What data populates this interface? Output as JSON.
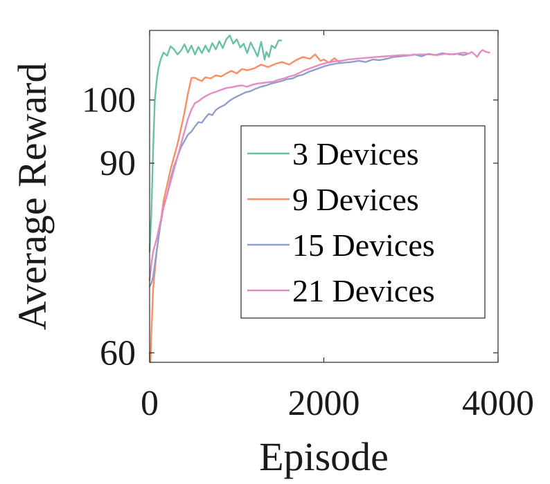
{
  "chart_data": {
    "type": "line",
    "xlabel": "Episode",
    "ylabel": "Average Reward",
    "xlim": [
      0,
      4000
    ],
    "ylim": [
      58.5,
      111
    ],
    "xticks": [
      0,
      2000,
      4000
    ],
    "yticks": [
      60,
      90,
      100
    ],
    "grid": false,
    "legend_position": "lower-right",
    "series": [
      {
        "name": "3 Devices",
        "color": "#66c2a5",
        "points": [
          [
            0,
            76
          ],
          [
            20,
            82
          ],
          [
            40,
            92
          ],
          [
            60,
            100
          ],
          [
            80,
            103
          ],
          [
            100,
            105
          ],
          [
            130,
            106.5
          ],
          [
            160,
            107.5
          ],
          [
            200,
            107
          ],
          [
            240,
            108.5
          ],
          [
            280,
            108
          ],
          [
            320,
            107.2
          ],
          [
            360,
            107.8
          ],
          [
            400,
            108.8
          ],
          [
            440,
            107.5
          ],
          [
            480,
            108.6
          ],
          [
            520,
            107.2
          ],
          [
            560,
            108.4
          ],
          [
            600,
            107.4
          ],
          [
            640,
            108.6
          ],
          [
            680,
            107.6
          ],
          [
            720,
            109
          ],
          [
            760,
            108
          ],
          [
            800,
            109.3
          ],
          [
            840,
            108.2
          ],
          [
            880,
            109.6
          ],
          [
            920,
            110.2
          ],
          [
            960,
            108.9
          ],
          [
            1000,
            109.6
          ],
          [
            1040,
            108.3
          ],
          [
            1080,
            108.9
          ],
          [
            1120,
            107.4
          ],
          [
            1160,
            109.1
          ],
          [
            1200,
            108
          ],
          [
            1240,
            106.9
          ],
          [
            1280,
            109.2
          ],
          [
            1320,
            106.4
          ],
          [
            1340,
            107.6
          ],
          [
            1370,
            106.8
          ],
          [
            1400,
            108.6
          ],
          [
            1440,
            108.2
          ],
          [
            1480,
            109.4
          ],
          [
            1510,
            109.4
          ]
        ]
      },
      {
        "name": "9 Devices",
        "color": "#fc8d62",
        "points": [
          [
            0,
            60
          ],
          [
            10,
            58.5
          ],
          [
            20,
            63
          ],
          [
            40,
            70
          ],
          [
            80,
            76
          ],
          [
            120,
            80
          ],
          [
            160,
            84
          ],
          [
            200,
            86.5
          ],
          [
            240,
            89
          ],
          [
            280,
            91
          ],
          [
            320,
            93
          ],
          [
            360,
            95.5
          ],
          [
            400,
            98
          ],
          [
            440,
            101
          ],
          [
            480,
            103.5
          ],
          [
            520,
            103.5
          ],
          [
            560,
            103.2
          ],
          [
            600,
            103
          ],
          [
            640,
            103.6
          ],
          [
            700,
            103.4
          ],
          [
            760,
            103.9
          ],
          [
            820,
            103.7
          ],
          [
            880,
            104.2
          ],
          [
            940,
            104.6
          ],
          [
            1000,
            104.2
          ],
          [
            1060,
            104.9
          ],
          [
            1120,
            104.7
          ],
          [
            1200,
            105
          ],
          [
            1280,
            105.6
          ],
          [
            1360,
            105.2
          ],
          [
            1440,
            105.7
          ],
          [
            1520,
            106
          ],
          [
            1600,
            105.6
          ],
          [
            1680,
            106.3
          ],
          [
            1760,
            106.8
          ],
          [
            1840,
            106.5
          ],
          [
            1900,
            107.2
          ],
          [
            1960,
            106.2
          ],
          [
            2000,
            106.4
          ],
          [
            2060,
            105.9
          ],
          [
            2120,
            106.6
          ],
          [
            2180,
            106
          ]
        ]
      },
      {
        "name": "15 Devices",
        "color": "#8da0cb",
        "points": [
          [
            0,
            70.5
          ],
          [
            20,
            71
          ],
          [
            40,
            72
          ],
          [
            80,
            76
          ],
          [
            120,
            80
          ],
          [
            160,
            83
          ],
          [
            200,
            85
          ],
          [
            240,
            87.5
          ],
          [
            280,
            89.5
          ],
          [
            320,
            91
          ],
          [
            360,
            92.5
          ],
          [
            400,
            93.5
          ],
          [
            440,
            94.5
          ],
          [
            480,
            95
          ],
          [
            520,
            95.8
          ],
          [
            560,
            96.5
          ],
          [
            600,
            96.4
          ],
          [
            640,
            97.2
          ],
          [
            680,
            97.8
          ],
          [
            720,
            97.6
          ],
          [
            760,
            98.4
          ],
          [
            800,
            98.8
          ],
          [
            860,
            99.2
          ],
          [
            920,
            99.9
          ],
          [
            980,
            100.4
          ],
          [
            1040,
            100.8
          ],
          [
            1100,
            101.2
          ],
          [
            1160,
            101.4
          ],
          [
            1220,
            101.8
          ],
          [
            1280,
            102.1
          ],
          [
            1340,
            102.3
          ],
          [
            1400,
            102.6
          ],
          [
            1460,
            102.8
          ],
          [
            1520,
            103
          ],
          [
            1580,
            103.3
          ],
          [
            1640,
            103.4
          ],
          [
            1700,
            103.8
          ],
          [
            1760,
            104
          ],
          [
            1820,
            104.4
          ],
          [
            1880,
            104.7
          ],
          [
            1940,
            105
          ],
          [
            2000,
            105.3
          ],
          [
            2080,
            105.6
          ],
          [
            2160,
            105.8
          ],
          [
            2240,
            105.9
          ],
          [
            2320,
            106
          ],
          [
            2400,
            106.2
          ],
          [
            2480,
            106
          ],
          [
            2560,
            106.4
          ],
          [
            2640,
            106.3
          ],
          [
            2720,
            106.5
          ],
          [
            2800,
            106.8
          ],
          [
            2880,
            106.9
          ],
          [
            2960,
            107
          ],
          [
            3040,
            107.2
          ],
          [
            3120,
            106.9
          ],
          [
            3200,
            107.3
          ],
          [
            3280,
            107.1
          ],
          [
            3360,
            107.4
          ],
          [
            3440,
            107.2
          ],
          [
            3520,
            107.3
          ],
          [
            3600,
            107.1
          ],
          [
            3640,
            107.2
          ]
        ]
      },
      {
        "name": "21 Devices",
        "color": "#e78ac3",
        "points": [
          [
            0,
            71.5
          ],
          [
            20,
            74
          ],
          [
            40,
            76
          ],
          [
            80,
            78
          ],
          [
            120,
            80.5
          ],
          [
            160,
            83
          ],
          [
            200,
            85
          ],
          [
            240,
            87
          ],
          [
            280,
            89
          ],
          [
            320,
            91
          ],
          [
            360,
            93
          ],
          [
            400,
            95
          ],
          [
            440,
            97
          ],
          [
            480,
            98.5
          ],
          [
            520,
            99.5
          ],
          [
            560,
            99.8
          ],
          [
            600,
            100.2
          ],
          [
            640,
            100.6
          ],
          [
            700,
            101
          ],
          [
            760,
            101.3
          ],
          [
            820,
            101.6
          ],
          [
            880,
            101.9
          ],
          [
            940,
            102
          ],
          [
            1000,
            102.2
          ],
          [
            1060,
            102.3
          ],
          [
            1120,
            102.1
          ],
          [
            1180,
            102.4
          ],
          [
            1240,
            102.6
          ],
          [
            1300,
            102.7
          ],
          [
            1360,
            102.8
          ],
          [
            1420,
            102.9
          ],
          [
            1480,
            103.2
          ],
          [
            1540,
            103.4
          ],
          [
            1600,
            103.7
          ],
          [
            1660,
            103.9
          ],
          [
            1720,
            104.3
          ],
          [
            1780,
            104.7
          ],
          [
            1840,
            105
          ],
          [
            1900,
            105.3
          ],
          [
            1960,
            105.6
          ],
          [
            2040,
            105.9
          ],
          [
            2120,
            106.1
          ],
          [
            2200,
            106.2
          ],
          [
            2280,
            106.4
          ],
          [
            2360,
            106.5
          ],
          [
            2440,
            106.6
          ],
          [
            2520,
            106.7
          ],
          [
            2600,
            106.8
          ],
          [
            2700,
            106.9
          ],
          [
            2800,
            107
          ],
          [
            2900,
            107.1
          ],
          [
            3000,
            107.1
          ],
          [
            3100,
            107.2
          ],
          [
            3200,
            107.2
          ],
          [
            3300,
            107.1
          ],
          [
            3400,
            107.3
          ],
          [
            3500,
            107.2
          ],
          [
            3560,
            107.4
          ],
          [
            3620,
            107.5
          ],
          [
            3660,
            107.3
          ],
          [
            3700,
            107.6
          ],
          [
            3740,
            107.1
          ],
          [
            3760,
            106.8
          ],
          [
            3790,
            107.5
          ],
          [
            3820,
            107.9
          ],
          [
            3860,
            107.6
          ],
          [
            3900,
            107.5
          ]
        ]
      }
    ]
  }
}
